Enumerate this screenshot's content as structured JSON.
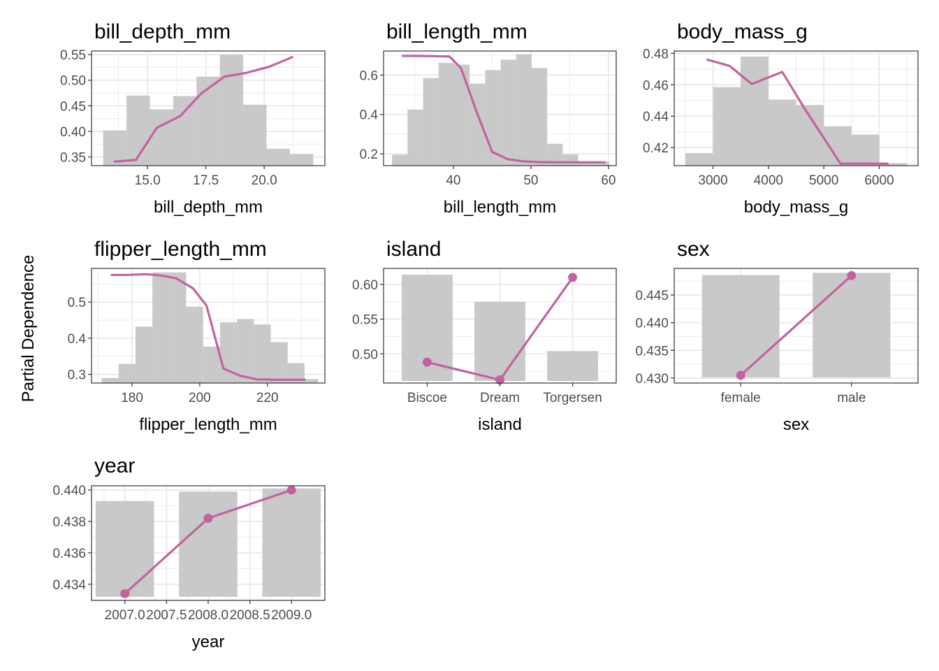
{
  "figure": {
    "ylabel": "Partial Dependence",
    "hist_color": "#C9C9C9",
    "line_color": "#C1639E",
    "grid_color": "#EBEBEB",
    "border_color": "#333333"
  },
  "chart_data": [
    {
      "type": "line",
      "title": "bill_depth_mm",
      "xlabel": "bill_depth_mm",
      "xlim": [
        12.6,
        22.6
      ],
      "ylim": [
        0.333,
        0.557
      ],
      "xticks": [
        15,
        17.5,
        20
      ],
      "xtick_labels": [
        "15.0",
        "17.5",
        "20.0"
      ],
      "yticks": [
        0.35,
        0.4,
        0.45,
        0.5,
        0.55
      ],
      "ytick_labels": [
        "0.35",
        "0.40",
        "0.45",
        "0.50",
        "0.55"
      ],
      "hist": {
        "breaks": [
          13.1,
          14.1,
          15.1,
          16.1,
          17.1,
          18.1,
          19.1,
          20.1,
          21.1,
          22.1
        ],
        "tops": [
          0.402,
          0.47,
          0.443,
          0.469,
          0.507,
          0.55,
          0.452,
          0.366,
          0.356
        ]
      },
      "series": [
        {
          "x": [
            13.6,
            14.5,
            15.4,
            16.4,
            17.3,
            18.3,
            19.2,
            20.2,
            21.2
          ],
          "values": [
            0.341,
            0.344,
            0.407,
            0.43,
            0.474,
            0.507,
            0.514,
            0.526,
            0.545
          ]
        }
      ]
    },
    {
      "type": "line",
      "title": "bill_length_mm",
      "xlabel": "bill_length_mm",
      "xlim": [
        31,
        61
      ],
      "ylim": [
        0.14,
        0.722
      ],
      "xticks": [
        40,
        50,
        60
      ],
      "xtick_labels": [
        "40",
        "50",
        "60"
      ],
      "yticks": [
        0.2,
        0.4,
        0.6
      ],
      "ytick_labels": [
        "0.2",
        "0.4",
        "0.6"
      ],
      "hist": {
        "breaks": [
          32.1,
          34.1,
          36.1,
          38.1,
          40.1,
          42.1,
          44.1,
          46.1,
          48.1,
          50.1,
          52.1,
          54.1,
          56.1,
          58.1,
          60.1
        ],
        "tops": [
          0.196,
          0.425,
          0.585,
          0.662,
          0.653,
          0.557,
          0.625,
          0.678,
          0.706,
          0.636,
          0.251,
          0.197,
          0.161,
          0.161
        ]
      },
      "series": [
        {
          "x": [
            33.5,
            35.5,
            37.5,
            39.5,
            41.0,
            43.0,
            45.0,
            47.0,
            49.0,
            51.0,
            53.0,
            55.0,
            57.0,
            59.5
          ],
          "values": [
            0.697,
            0.697,
            0.696,
            0.694,
            0.634,
            0.413,
            0.21,
            0.173,
            0.162,
            0.158,
            0.157,
            0.157,
            0.157,
            0.157
          ]
        }
      ]
    },
    {
      "type": "line",
      "title": "body_mass_g",
      "xlabel": "body_mass_g",
      "xlim": [
        2300,
        6700
      ],
      "ylim": [
        0.4085,
        0.4815
      ],
      "xticks": [
        3000,
        4000,
        5000,
        6000
      ],
      "xtick_labels": [
        "3000",
        "4000",
        "5000",
        "6000"
      ],
      "yticks": [
        0.42,
        0.44,
        0.46,
        0.48
      ],
      "ytick_labels": [
        "0.42",
        "0.44",
        "0.46",
        "0.48"
      ],
      "hist": {
        "breaks": [
          2500,
          3000,
          3500,
          4000,
          4500,
          5000,
          5500,
          6000,
          6500
        ],
        "tops": [
          0.4165,
          0.4585,
          0.478,
          0.4506,
          0.4471,
          0.4336,
          0.4283,
          0.41
        ]
      },
      "series": [
        {
          "x": [
            2900,
            3300,
            3700,
            4250,
            4650,
            5300,
            5700,
            6150
          ],
          "values": [
            0.476,
            0.472,
            0.4605,
            0.4682,
            0.445,
            0.4098,
            0.4098,
            0.4098
          ]
        }
      ]
    },
    {
      "type": "line",
      "title": "flipper_length_mm",
      "xlabel": "flipper_length_mm",
      "xlim": [
        168,
        237
      ],
      "ylim": [
        0.276,
        0.593
      ],
      "xticks": [
        180,
        200,
        220
      ],
      "xtick_labels": [
        "180",
        "200",
        "220"
      ],
      "yticks": [
        0.3,
        0.4,
        0.5
      ],
      "ytick_labels": [
        "0.3",
        "0.4",
        "0.5"
      ],
      "hist": {
        "breaks": [
          171,
          176,
          181,
          186,
          191,
          196,
          201,
          206,
          211,
          216,
          221,
          226,
          231,
          235
        ],
        "tops": [
          0.29,
          0.329,
          0.432,
          0.582,
          0.582,
          0.487,
          0.377,
          0.444,
          0.453,
          0.438,
          0.389,
          0.331,
          0.287
        ]
      },
      "series": [
        {
          "x": [
            174,
            179,
            184,
            188,
            193,
            198,
            202,
            207,
            212,
            217,
            222,
            226,
            231
          ],
          "values": [
            0.575,
            0.575,
            0.577,
            0.574,
            0.566,
            0.538,
            0.49,
            0.316,
            0.296,
            0.286,
            0.285,
            0.285,
            0.285
          ]
        }
      ]
    },
    {
      "type": "line",
      "title": "island",
      "xlabel": "island",
      "categories": [
        "Biscoe",
        "Dream",
        "Torgersen"
      ],
      "ylim": [
        0.458,
        0.623
      ],
      "yticks": [
        0.5,
        0.55,
        0.6
      ],
      "ytick_labels": [
        "0.50",
        "0.55",
        "0.60"
      ],
      "bar_tops": [
        0.614,
        0.575,
        0.504
      ],
      "bar_base": 0.461,
      "series": [
        {
          "values": [
            0.488,
            0.4625,
            0.61
          ]
        }
      ]
    },
    {
      "type": "line",
      "title": "sex",
      "xlabel": "sex",
      "categories": [
        "female",
        "male"
      ],
      "ylim": [
        0.4291,
        0.4498
      ],
      "yticks": [
        0.43,
        0.435,
        0.44,
        0.445
      ],
      "ytick_labels": [
        "0.430",
        "0.435",
        "0.440",
        "0.445"
      ],
      "bar_tops": [
        0.4486,
        0.449
      ],
      "bar_base": 0.4301,
      "series": [
        {
          "values": [
            0.4305,
            0.4485
          ]
        }
      ]
    },
    {
      "type": "line",
      "title": "year",
      "xlabel": "year",
      "xlim": [
        2006.6,
        2009.4
      ],
      "ylim": [
        0.43297,
        0.44027
      ],
      "xticks": [
        2007.0,
        2007.5,
        2008.0,
        2008.5,
        2009.0
      ],
      "xtick_labels": [
        "2007.0",
        "2007.5",
        "2008.0",
        "2008.5",
        "2009.0"
      ],
      "yticks": [
        0.434,
        0.436,
        0.438,
        0.44
      ],
      "ytick_labels": [
        "0.434",
        "0.436",
        "0.438",
        "0.440"
      ],
      "bar_width": 0.7,
      "bar_centers": [
        2007.0,
        2008.0,
        2009.0
      ],
      "bar_tops": [
        0.4393,
        0.4399,
        0.4401
      ],
      "bar_base": 0.4332,
      "series": [
        {
          "x": [
            2007.0,
            2008.0,
            2009.0
          ],
          "values": [
            0.4334,
            0.4382,
            0.44
          ]
        }
      ]
    }
  ]
}
